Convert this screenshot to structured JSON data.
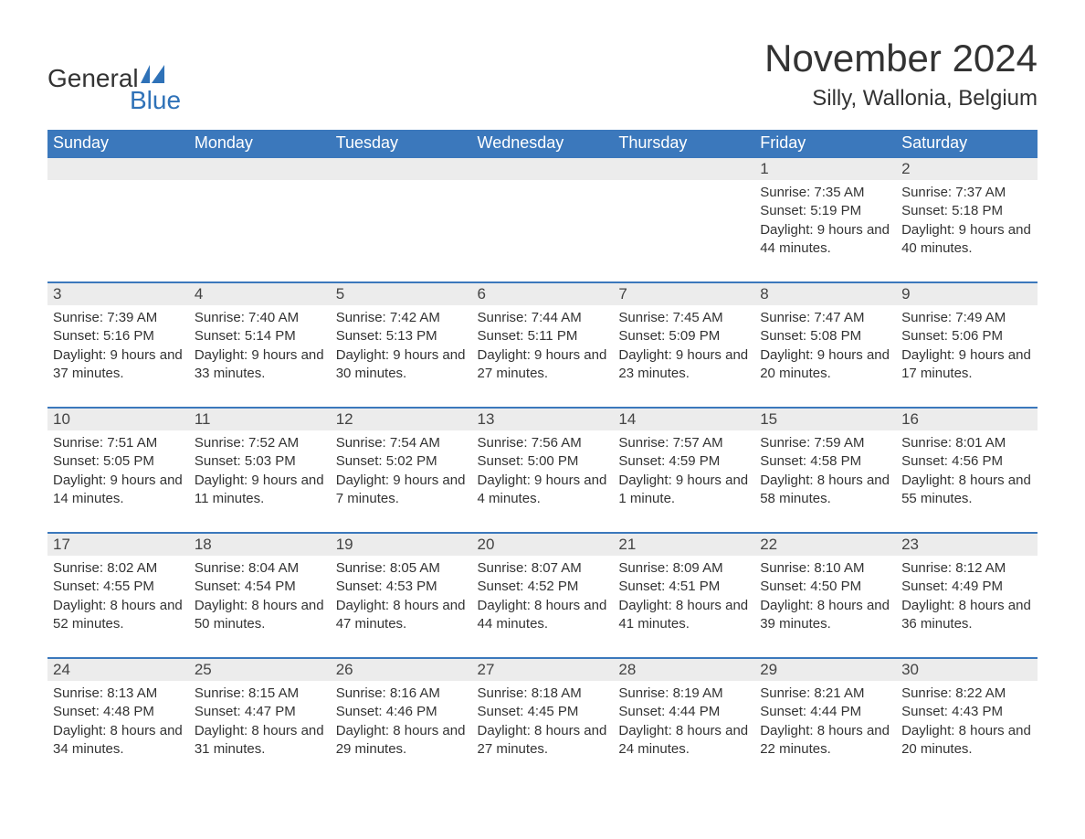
{
  "brand": {
    "word1": "General",
    "word2": "Blue",
    "text_color": "#333333",
    "accent_color": "#2f72b8",
    "fontsize": 28
  },
  "header": {
    "title": "November 2024",
    "title_fontsize": 42,
    "location": "Silly, Wallonia, Belgium",
    "location_fontsize": 24,
    "text_color": "#333333"
  },
  "calendar": {
    "type": "table",
    "header_bg": "#3b78bc",
    "header_text_color": "#ffffff",
    "header_fontsize": 18,
    "row_border_color": "#3b78bc",
    "daynum_bg": "#ececec",
    "body_fontsize": 15,
    "body_text_color": "#333333",
    "columns": [
      "Sunday",
      "Monday",
      "Tuesday",
      "Wednesday",
      "Thursday",
      "Friday",
      "Saturday"
    ],
    "labels": {
      "sunrise": "Sunrise: ",
      "sunset": "Sunset: ",
      "daylight": "Daylight: "
    },
    "weeks": [
      [
        {
          "blank": true
        },
        {
          "blank": true
        },
        {
          "blank": true
        },
        {
          "blank": true
        },
        {
          "blank": true
        },
        {
          "n": "1",
          "sunrise": "7:35 AM",
          "sunset": "5:19 PM",
          "daylight": "9 hours and 44 minutes."
        },
        {
          "n": "2",
          "sunrise": "7:37 AM",
          "sunset": "5:18 PM",
          "daylight": "9 hours and 40 minutes."
        }
      ],
      [
        {
          "n": "3",
          "sunrise": "7:39 AM",
          "sunset": "5:16 PM",
          "daylight": "9 hours and 37 minutes."
        },
        {
          "n": "4",
          "sunrise": "7:40 AM",
          "sunset": "5:14 PM",
          "daylight": "9 hours and 33 minutes."
        },
        {
          "n": "5",
          "sunrise": "7:42 AM",
          "sunset": "5:13 PM",
          "daylight": "9 hours and 30 minutes."
        },
        {
          "n": "6",
          "sunrise": "7:44 AM",
          "sunset": "5:11 PM",
          "daylight": "9 hours and 27 minutes."
        },
        {
          "n": "7",
          "sunrise": "7:45 AM",
          "sunset": "5:09 PM",
          "daylight": "9 hours and 23 minutes."
        },
        {
          "n": "8",
          "sunrise": "7:47 AM",
          "sunset": "5:08 PM",
          "daylight": "9 hours and 20 minutes."
        },
        {
          "n": "9",
          "sunrise": "7:49 AM",
          "sunset": "5:06 PM",
          "daylight": "9 hours and 17 minutes."
        }
      ],
      [
        {
          "n": "10",
          "sunrise": "7:51 AM",
          "sunset": "5:05 PM",
          "daylight": "9 hours and 14 minutes."
        },
        {
          "n": "11",
          "sunrise": "7:52 AM",
          "sunset": "5:03 PM",
          "daylight": "9 hours and 11 minutes."
        },
        {
          "n": "12",
          "sunrise": "7:54 AM",
          "sunset": "5:02 PM",
          "daylight": "9 hours and 7 minutes."
        },
        {
          "n": "13",
          "sunrise": "7:56 AM",
          "sunset": "5:00 PM",
          "daylight": "9 hours and 4 minutes."
        },
        {
          "n": "14",
          "sunrise": "7:57 AM",
          "sunset": "4:59 PM",
          "daylight": "9 hours and 1 minute."
        },
        {
          "n": "15",
          "sunrise": "7:59 AM",
          "sunset": "4:58 PM",
          "daylight": "8 hours and 58 minutes."
        },
        {
          "n": "16",
          "sunrise": "8:01 AM",
          "sunset": "4:56 PM",
          "daylight": "8 hours and 55 minutes."
        }
      ],
      [
        {
          "n": "17",
          "sunrise": "8:02 AM",
          "sunset": "4:55 PM",
          "daylight": "8 hours and 52 minutes."
        },
        {
          "n": "18",
          "sunrise": "8:04 AM",
          "sunset": "4:54 PM",
          "daylight": "8 hours and 50 minutes."
        },
        {
          "n": "19",
          "sunrise": "8:05 AM",
          "sunset": "4:53 PM",
          "daylight": "8 hours and 47 minutes."
        },
        {
          "n": "20",
          "sunrise": "8:07 AM",
          "sunset": "4:52 PM",
          "daylight": "8 hours and 44 minutes."
        },
        {
          "n": "21",
          "sunrise": "8:09 AM",
          "sunset": "4:51 PM",
          "daylight": "8 hours and 41 minutes."
        },
        {
          "n": "22",
          "sunrise": "8:10 AM",
          "sunset": "4:50 PM",
          "daylight": "8 hours and 39 minutes."
        },
        {
          "n": "23",
          "sunrise": "8:12 AM",
          "sunset": "4:49 PM",
          "daylight": "8 hours and 36 minutes."
        }
      ],
      [
        {
          "n": "24",
          "sunrise": "8:13 AM",
          "sunset": "4:48 PM",
          "daylight": "8 hours and 34 minutes."
        },
        {
          "n": "25",
          "sunrise": "8:15 AM",
          "sunset": "4:47 PM",
          "daylight": "8 hours and 31 minutes."
        },
        {
          "n": "26",
          "sunrise": "8:16 AM",
          "sunset": "4:46 PM",
          "daylight": "8 hours and 29 minutes."
        },
        {
          "n": "27",
          "sunrise": "8:18 AM",
          "sunset": "4:45 PM",
          "daylight": "8 hours and 27 minutes."
        },
        {
          "n": "28",
          "sunrise": "8:19 AM",
          "sunset": "4:44 PM",
          "daylight": "8 hours and 24 minutes."
        },
        {
          "n": "29",
          "sunrise": "8:21 AM",
          "sunset": "4:44 PM",
          "daylight": "8 hours and 22 minutes."
        },
        {
          "n": "30",
          "sunrise": "8:22 AM",
          "sunset": "4:43 PM",
          "daylight": "8 hours and 20 minutes."
        }
      ]
    ]
  }
}
